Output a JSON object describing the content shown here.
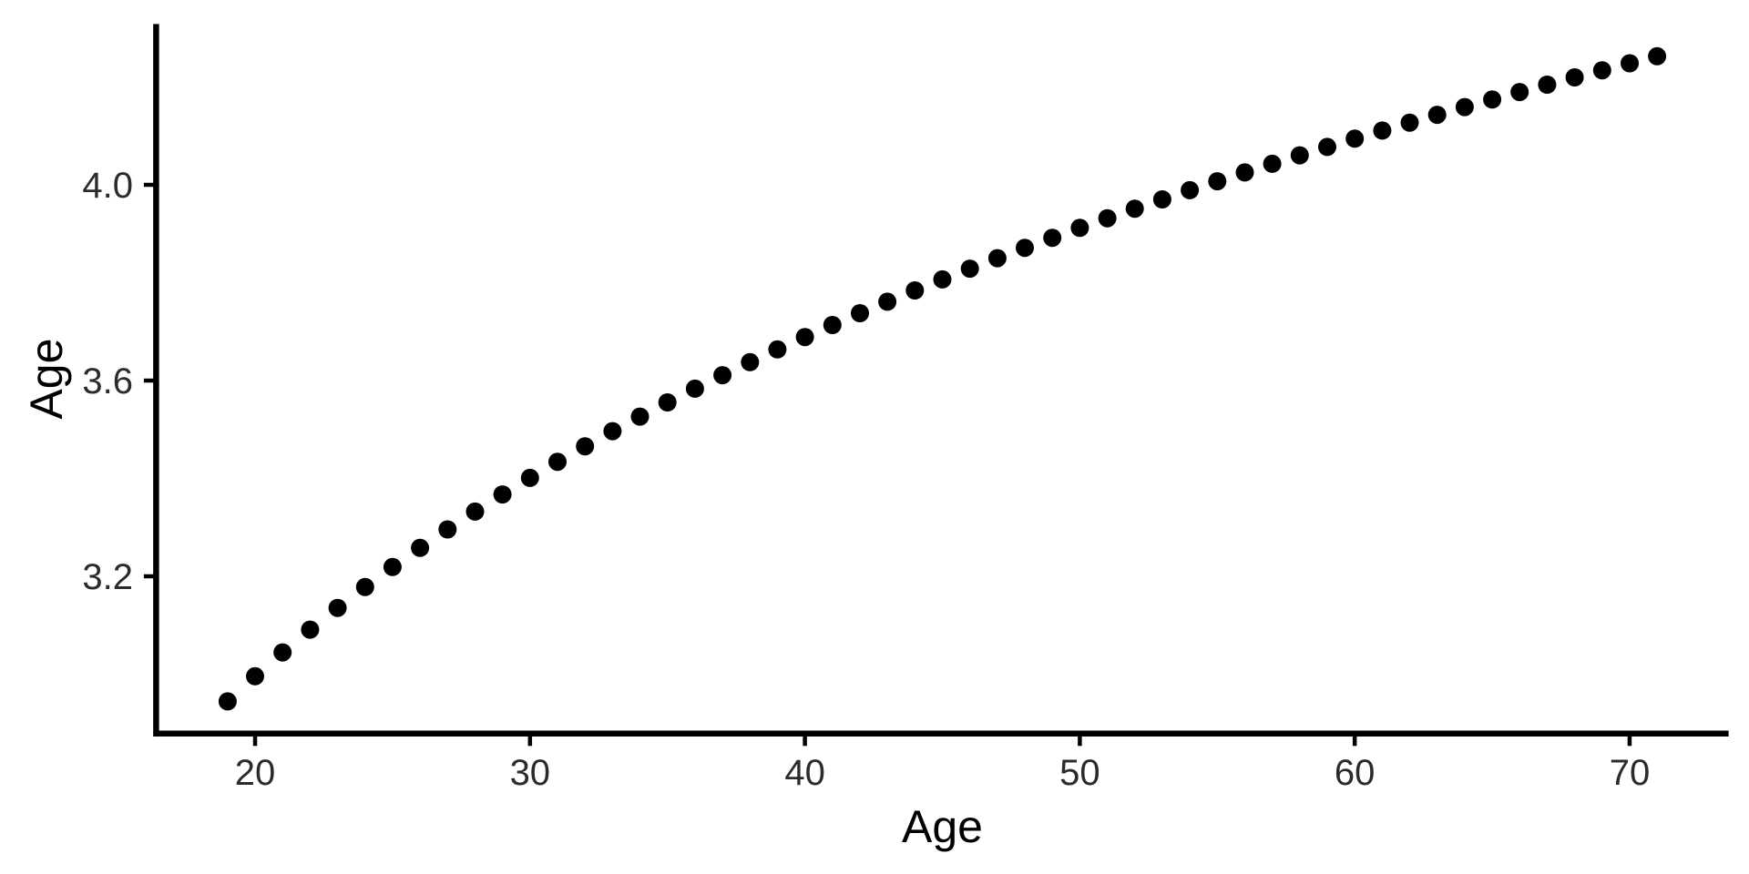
{
  "chart_data": {
    "type": "scatter",
    "title": "",
    "xlabel": "Age",
    "ylabel": "Age",
    "x": [
      19,
      20,
      21,
      22,
      23,
      24,
      25,
      26,
      27,
      28,
      29,
      30,
      31,
      32,
      33,
      34,
      35,
      36,
      37,
      38,
      39,
      40,
      41,
      42,
      43,
      44,
      45,
      46,
      47,
      48,
      49,
      50,
      51,
      52,
      53,
      54,
      55,
      56,
      57,
      58,
      59,
      60,
      61,
      62,
      63,
      64,
      65,
      66,
      67,
      68,
      69,
      70,
      71
    ],
    "y": [
      2.9444,
      2.9957,
      3.0445,
      3.091,
      3.1355,
      3.1781,
      3.2189,
      3.2581,
      3.2958,
      3.3322,
      3.3673,
      3.4012,
      3.434,
      3.4657,
      3.4965,
      3.5264,
      3.5553,
      3.5835,
      3.6109,
      3.6376,
      3.6636,
      3.6889,
      3.7136,
      3.7377,
      3.7612,
      3.7842,
      3.8067,
      3.8286,
      3.8501,
      3.8712,
      3.8918,
      3.912,
      3.9318,
      3.9512,
      3.9703,
      3.989,
      4.0073,
      4.0254,
      4.0431,
      4.0604,
      4.0775,
      4.0943,
      4.1109,
      4.1271,
      4.1431,
      4.1589,
      4.1744,
      4.1897,
      4.2047,
      4.2195,
      4.2341,
      4.2485,
      4.2627
    ],
    "x_ticks": [
      20,
      30,
      40,
      50,
      60,
      70
    ],
    "y_ticks": [
      3.2,
      3.6,
      4.0
    ],
    "x_tick_labels": [
      "20",
      "30",
      "40",
      "50",
      "60",
      "70"
    ],
    "y_tick_labels": [
      "3.2",
      "3.6",
      "4.0"
    ],
    "xlim": [
      16.4,
      73.6
    ],
    "ylim": [
      2.8785,
      4.3286
    ],
    "grid": "off",
    "legend": "none",
    "point_color": "#000000",
    "axis_color": "#000000",
    "tick_label_color": "#2b2b2b",
    "background": "#FFFFFF"
  },
  "labels": {
    "x_axis_title": "Age",
    "y_axis_title": "Age"
  }
}
